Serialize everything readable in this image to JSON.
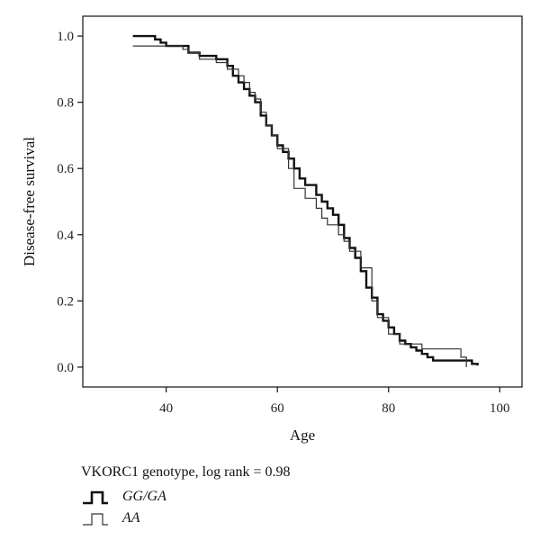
{
  "chart_data": {
    "type": "line",
    "step": true,
    "xlabel": "Age",
    "ylabel": "Disease-free survival",
    "xlim": [
      25,
      104
    ],
    "ylim": [
      -0.06,
      1.06
    ],
    "xticks": [
      40,
      60,
      80,
      100
    ],
    "yticks": [
      "0.0",
      "0.2",
      "0.4",
      "0.6",
      "0.8",
      "1.0"
    ],
    "grid": false,
    "legend": {
      "title": "VKORC1 genotype, log rank = 0.98",
      "placement": "bottom-left"
    },
    "series": [
      {
        "name": "GG/GA",
        "style": "thick",
        "color": "#111111",
        "points": [
          [
            34,
            1.0
          ],
          [
            38,
            0.99
          ],
          [
            39,
            0.98
          ],
          [
            40,
            0.97
          ],
          [
            43,
            0.97
          ],
          [
            44,
            0.95
          ],
          [
            46,
            0.94
          ],
          [
            49,
            0.93
          ],
          [
            51,
            0.91
          ],
          [
            52,
            0.88
          ],
          [
            53,
            0.86
          ],
          [
            54,
            0.84
          ],
          [
            55,
            0.82
          ],
          [
            56,
            0.8
          ],
          [
            57,
            0.76
          ],
          [
            58,
            0.73
          ],
          [
            59,
            0.7
          ],
          [
            60,
            0.67
          ],
          [
            61,
            0.65
          ],
          [
            62,
            0.63
          ],
          [
            63,
            0.6
          ],
          [
            64,
            0.57
          ],
          [
            65,
            0.55
          ],
          [
            67,
            0.52
          ],
          [
            68,
            0.5
          ],
          [
            69,
            0.48
          ],
          [
            70,
            0.46
          ],
          [
            71,
            0.43
          ],
          [
            72,
            0.39
          ],
          [
            73,
            0.36
          ],
          [
            74,
            0.33
          ],
          [
            75,
            0.29
          ],
          [
            76,
            0.24
          ],
          [
            77,
            0.21
          ],
          [
            78,
            0.16
          ],
          [
            79,
            0.14
          ],
          [
            80,
            0.12
          ],
          [
            81,
            0.1
          ],
          [
            82,
            0.08
          ],
          [
            83,
            0.07
          ],
          [
            84,
            0.06
          ],
          [
            85,
            0.05
          ],
          [
            86,
            0.04
          ],
          [
            87,
            0.03
          ],
          [
            88,
            0.02
          ],
          [
            93,
            0.02
          ],
          [
            95,
            0.01
          ],
          [
            96,
            0.005
          ]
        ]
      },
      {
        "name": "AA",
        "style": "thin",
        "color": "#333333",
        "points": [
          [
            34,
            0.97
          ],
          [
            43,
            0.96
          ],
          [
            44,
            0.95
          ],
          [
            46,
            0.93
          ],
          [
            49,
            0.92
          ],
          [
            51,
            0.9
          ],
          [
            53,
            0.88
          ],
          [
            54,
            0.86
          ],
          [
            55,
            0.83
          ],
          [
            56,
            0.81
          ],
          [
            57,
            0.77
          ],
          [
            58,
            0.73
          ],
          [
            59,
            0.7
          ],
          [
            60,
            0.66
          ],
          [
            62,
            0.6
          ],
          [
            63,
            0.54
          ],
          [
            65,
            0.51
          ],
          [
            67,
            0.48
          ],
          [
            68,
            0.45
          ],
          [
            69,
            0.43
          ],
          [
            71,
            0.4
          ],
          [
            72,
            0.38
          ],
          [
            73,
            0.35
          ],
          [
            75,
            0.3
          ],
          [
            77,
            0.2
          ],
          [
            78,
            0.15
          ],
          [
            80,
            0.1
          ],
          [
            82,
            0.07
          ],
          [
            86,
            0.055
          ],
          [
            93,
            0.03
          ],
          [
            94,
            0.0
          ]
        ]
      }
    ]
  }
}
